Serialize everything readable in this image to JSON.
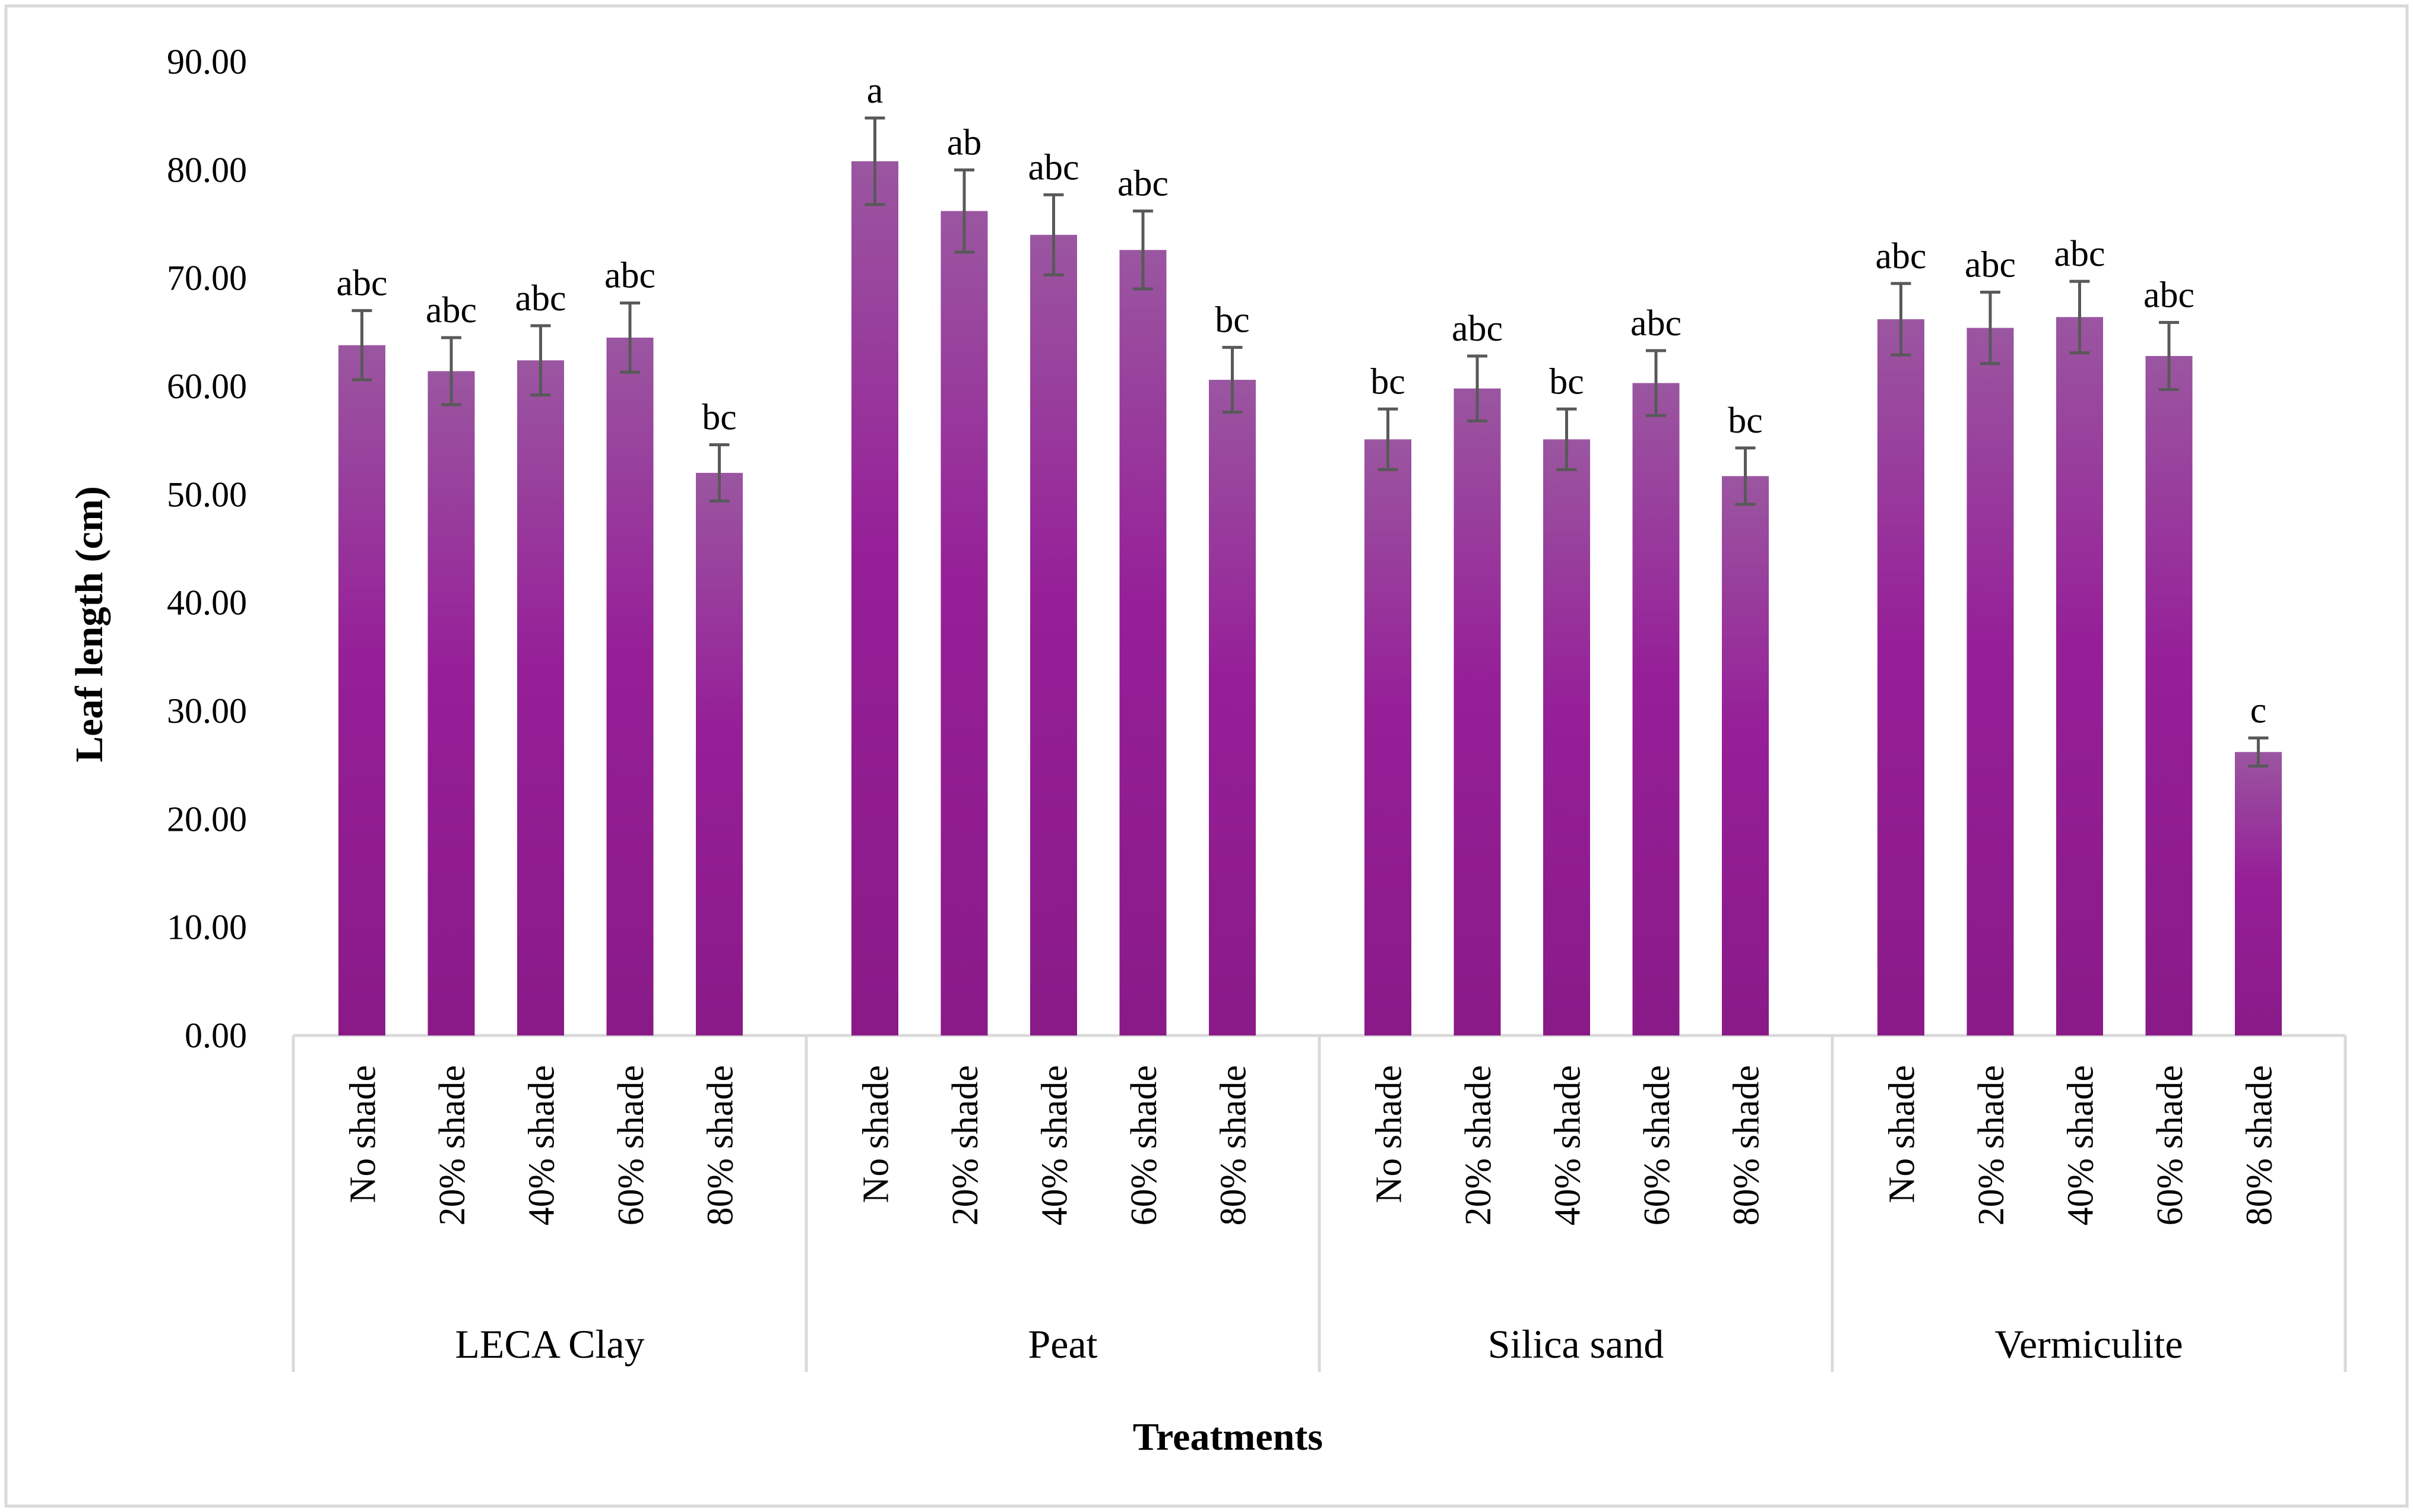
{
  "chart_data": {
    "type": "bar",
    "xlabel": "Treatments",
    "ylabel": "Leaf length (cm)",
    "ylim": [
      0,
      90
    ],
    "yticks": [
      "0.00",
      "10.00",
      "20.00",
      "30.00",
      "40.00",
      "50.00",
      "60.00",
      "70.00",
      "80.00",
      "90.00"
    ],
    "grid": false,
    "legend": "none",
    "bar_color": "#951f96",
    "bar_highlight": "#9a56a0",
    "groups": [
      {
        "name": "LECA Clay",
        "bars": [
          {
            "label": "No shade",
            "value": 63.8,
            "err": 3.2,
            "letter": "abc"
          },
          {
            "label": "20% shade",
            "value": 61.4,
            "err": 3.1,
            "letter": "abc"
          },
          {
            "label": "40% shade",
            "value": 62.4,
            "err": 3.2,
            "letter": "abc"
          },
          {
            "label": "60% shade",
            "value": 64.5,
            "err": 3.2,
            "letter": "abc"
          },
          {
            "label": "80% shade",
            "value": 52.0,
            "err": 2.6,
            "letter": "bc"
          }
        ]
      },
      {
        "name": "Peat",
        "bars": [
          {
            "label": "No shade",
            "value": 80.8,
            "err": 4.0,
            "letter": "a"
          },
          {
            "label": "20% shade",
            "value": 76.2,
            "err": 3.8,
            "letter": "ab"
          },
          {
            "label": "40% shade",
            "value": 74.0,
            "err": 3.7,
            "letter": "abc"
          },
          {
            "label": "60% shade",
            "value": 72.6,
            "err": 3.6,
            "letter": "abc"
          },
          {
            "label": "80% shade",
            "value": 60.6,
            "err": 3.0,
            "letter": "bc"
          }
        ]
      },
      {
        "name": "Silica sand",
        "bars": [
          {
            "label": "No shade",
            "value": 55.1,
            "err": 2.8,
            "letter": "bc"
          },
          {
            "label": "20% shade",
            "value": 59.8,
            "err": 3.0,
            "letter": "abc"
          },
          {
            "label": "40% shade",
            "value": 55.1,
            "err": 2.8,
            "letter": "bc"
          },
          {
            "label": "60% shade",
            "value": 60.3,
            "err": 3.0,
            "letter": "abc"
          },
          {
            "label": "80% shade",
            "value": 51.7,
            "err": 2.6,
            "letter": "bc"
          }
        ]
      },
      {
        "name": "Vermiculite",
        "bars": [
          {
            "label": "No shade",
            "value": 66.2,
            "err": 3.3,
            "letter": "abc"
          },
          {
            "label": "20% shade",
            "value": 65.4,
            "err": 3.3,
            "letter": "abc"
          },
          {
            "label": "40% shade",
            "value": 66.4,
            "err": 3.3,
            "letter": "abc"
          },
          {
            "label": "60% shade",
            "value": 62.8,
            "err": 3.1,
            "letter": "abc"
          },
          {
            "label": "80% shade",
            "value": 26.2,
            "err": 1.3,
            "letter": "c"
          }
        ]
      }
    ]
  }
}
